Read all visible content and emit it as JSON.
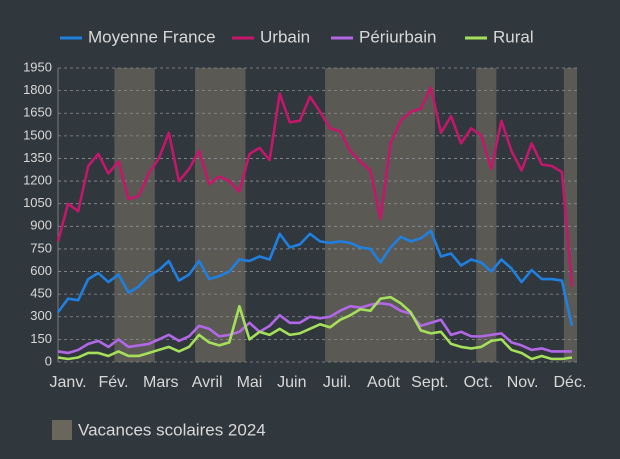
{
  "chart_data": {
    "type": "line",
    "x": [
      1,
      2,
      3,
      4,
      5,
      6,
      7,
      8,
      9,
      10,
      11,
      12,
      13,
      14,
      15,
      16,
      17,
      18,
      19,
      20,
      21,
      22,
      23,
      24,
      25,
      26,
      27,
      28,
      29,
      30,
      31,
      32,
      33,
      34,
      35,
      36,
      37,
      38,
      39,
      40,
      41,
      42,
      43,
      44,
      45,
      46,
      47,
      48,
      49,
      50,
      51,
      52
    ],
    "xlim": [
      1,
      52.5
    ],
    "xticks": [
      {
        "value": 2,
        "label": "Janv."
      },
      {
        "value": 6.5,
        "label": "Fév."
      },
      {
        "value": 11.2,
        "label": "Mars"
      },
      {
        "value": 15.8,
        "label": "Avril"
      },
      {
        "value": 20,
        "label": "Mai"
      },
      {
        "value": 24.2,
        "label": "Juin"
      },
      {
        "value": 28.7,
        "label": "Juil."
      },
      {
        "value": 33.3,
        "label": "Août"
      },
      {
        "value": 37.9,
        "label": "Sept."
      },
      {
        "value": 42.7,
        "label": "Oct."
      },
      {
        "value": 47.1,
        "label": "Nov."
      },
      {
        "value": 51.8,
        "label": "Déc."
      }
    ],
    "ylim": [
      0,
      1950
    ],
    "yticks": [
      0,
      150,
      300,
      450,
      600,
      750,
      900,
      1050,
      1200,
      1350,
      1500,
      1650,
      1800,
      1950
    ],
    "grid": true,
    "shaded_label": "Vacances scolaires 2024",
    "shaded_color": "#6a665c",
    "shaded_ranges": [
      [
        6.6,
        10.6
      ],
      [
        14.6,
        19.6
      ],
      [
        27.5,
        38.4
      ],
      [
        42.5,
        44.5
      ],
      [
        51.2,
        52.5
      ]
    ],
    "series": [
      {
        "name": "Moyenne France",
        "color": "#1f80e0",
        "values": [
          330,
          420,
          410,
          550,
          590,
          530,
          580,
          460,
          500,
          570,
          610,
          670,
          540,
          580,
          670,
          550,
          570,
          600,
          680,
          670,
          700,
          680,
          850,
          760,
          780,
          850,
          800,
          790,
          800,
          790,
          760,
          750,
          660,
          760,
          830,
          800,
          820,
          870,
          700,
          720,
          640,
          680,
          660,
          600,
          680,
          620,
          530,
          610,
          550,
          550,
          540,
          240
        ]
      },
      {
        "name": "Urbain",
        "color": "#c4176c",
        "values": [
          800,
          1050,
          1000,
          1300,
          1380,
          1250,
          1330,
          1080,
          1100,
          1250,
          1350,
          1520,
          1200,
          1280,
          1400,
          1180,
          1230,
          1200,
          1130,
          1380,
          1420,
          1340,
          1780,
          1590,
          1600,
          1760,
          1660,
          1550,
          1530,
          1400,
          1330,
          1270,
          950,
          1450,
          1600,
          1660,
          1680,
          1820,
          1520,
          1630,
          1450,
          1550,
          1500,
          1280,
          1600,
          1400,
          1270,
          1450,
          1310,
          1300,
          1260,
          500
        ]
      },
      {
        "name": "Périurbain",
        "color": "#b268e6",
        "values": [
          70,
          60,
          80,
          120,
          140,
          100,
          150,
          100,
          110,
          120,
          150,
          180,
          140,
          170,
          240,
          220,
          170,
          180,
          200,
          260,
          200,
          240,
          310,
          260,
          260,
          300,
          290,
          300,
          340,
          370,
          360,
          380,
          390,
          380,
          340,
          320,
          240,
          260,
          280,
          180,
          200,
          170,
          170,
          180,
          190,
          130,
          110,
          80,
          90,
          70,
          70,
          70
        ]
      },
      {
        "name": "Rural",
        "color": "#a5e05a",
        "values": [
          30,
          20,
          30,
          60,
          60,
          40,
          70,
          40,
          40,
          60,
          80,
          100,
          70,
          100,
          180,
          130,
          110,
          130,
          370,
          150,
          200,
          180,
          220,
          180,
          190,
          220,
          250,
          230,
          280,
          310,
          350,
          340,
          420,
          430,
          390,
          330,
          210,
          190,
          200,
          120,
          100,
          90,
          100,
          140,
          150,
          80,
          60,
          20,
          40,
          20,
          20,
          30
        ]
      }
    ]
  }
}
